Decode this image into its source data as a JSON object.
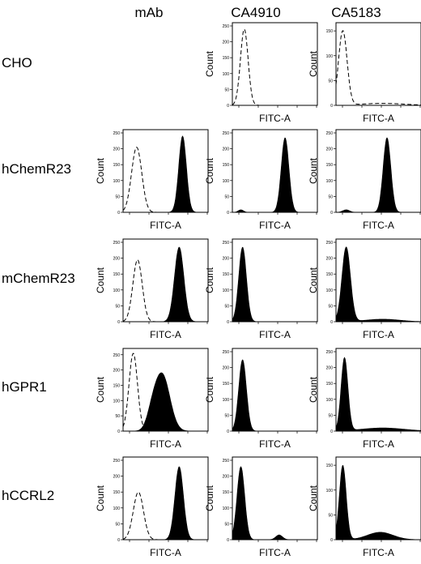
{
  "columns": [
    "mAb",
    "CA4910",
    "CA5183"
  ],
  "rows": [
    "CHO",
    "hChemR23",
    "mChemR23",
    "hGPR1",
    "hCCRL2"
  ],
  "axis": {
    "xlabel": "FITC-A",
    "ylabel": "Count"
  },
  "panels": [
    {
      "id": "CHO-CA4910",
      "row": 0,
      "col": 1,
      "ylim": [
        0,
        250
      ],
      "yticks": [
        "0",
        "50",
        "100",
        "150",
        "200",
        "250"
      ],
      "series": [
        {
          "style": "dashed",
          "peaks": [
            {
              "center": 0.14,
              "width": 0.045,
              "height": 240
            }
          ]
        }
      ]
    },
    {
      "id": "CHO-CA5183",
      "row": 0,
      "col": 2,
      "ylim": [
        0,
        160
      ],
      "yticks": [
        "0",
        "50",
        "100",
        "150"
      ],
      "series": [
        {
          "style": "dashed",
          "peaks": [
            {
              "center": 0.08,
              "width": 0.05,
              "height": 150
            },
            {
              "center": 0.55,
              "width": 0.25,
              "height": 4
            }
          ]
        }
      ]
    },
    {
      "id": "hChemR23-mAb",
      "row": 1,
      "col": 0,
      "ylim": [
        0,
        250
      ],
      "yticks": [
        "0",
        "50",
        "100",
        "150",
        "200",
        "250"
      ],
      "series": [
        {
          "style": "dashed",
          "peaks": [
            {
              "center": 0.16,
              "width": 0.06,
              "height": 205
            }
          ]
        },
        {
          "style": "filled",
          "peaks": [
            {
              "center": 0.7,
              "width": 0.045,
              "height": 240
            }
          ]
        }
      ]
    },
    {
      "id": "hChemR23-CA4910",
      "row": 1,
      "col": 1,
      "ylim": [
        0,
        250
      ],
      "yticks": [
        "0",
        "50",
        "100",
        "150",
        "200",
        "250"
      ],
      "series": [
        {
          "style": "filled",
          "peaks": [
            {
              "center": 0.62,
              "width": 0.045,
              "height": 235
            },
            {
              "center": 0.1,
              "width": 0.03,
              "height": 8
            }
          ]
        }
      ]
    },
    {
      "id": "hChemR23-CA5183",
      "row": 1,
      "col": 2,
      "ylim": [
        0,
        250
      ],
      "yticks": [
        "0",
        "50",
        "100",
        "150",
        "200",
        "250"
      ],
      "series": [
        {
          "style": "filled",
          "peaks": [
            {
              "center": 0.6,
              "width": 0.045,
              "height": 235
            },
            {
              "center": 0.12,
              "width": 0.04,
              "height": 8
            }
          ]
        }
      ]
    },
    {
      "id": "mChemR23-mAb",
      "row": 2,
      "col": 0,
      "ylim": [
        0,
        250
      ],
      "yticks": [
        "0",
        "50",
        "100",
        "150",
        "200",
        "250"
      ],
      "series": [
        {
          "style": "dashed",
          "peaks": [
            {
              "center": 0.17,
              "width": 0.055,
              "height": 195
            }
          ]
        },
        {
          "style": "filled",
          "peaks": [
            {
              "center": 0.66,
              "width": 0.055,
              "height": 235
            }
          ]
        }
      ]
    },
    {
      "id": "mChemR23-CA4910",
      "row": 2,
      "col": 1,
      "ylim": [
        0,
        250
      ],
      "yticks": [
        "0",
        "50",
        "100",
        "150",
        "200",
        "250"
      ],
      "series": [
        {
          "style": "filled",
          "peaks": [
            {
              "center": 0.12,
              "width": 0.045,
              "height": 235
            }
          ]
        }
      ]
    },
    {
      "id": "mChemR23-CA5183",
      "row": 2,
      "col": 2,
      "ylim": [
        0,
        250
      ],
      "yticks": [
        "0",
        "50",
        "100",
        "150",
        "200",
        "250"
      ],
      "series": [
        {
          "style": "filled",
          "peaks": [
            {
              "center": 0.12,
              "width": 0.05,
              "height": 235
            },
            {
              "center": 0.55,
              "width": 0.2,
              "height": 8
            }
          ]
        }
      ]
    },
    {
      "id": "hGPR1-mAb",
      "row": 3,
      "col": 0,
      "ylim": [
        0,
        260
      ],
      "yticks": [
        "0",
        "50",
        "100",
        "150",
        "200",
        "250"
      ],
      "series": [
        {
          "style": "dashed",
          "peaks": [
            {
              "center": 0.12,
              "width": 0.05,
              "height": 255
            }
          ]
        },
        {
          "style": "filled",
          "peaks": [
            {
              "center": 0.46,
              "width": 0.09,
              "height": 185
            },
            {
              "center": 0.34,
              "width": 0.06,
              "height": 40
            }
          ]
        }
      ]
    },
    {
      "id": "hGPR1-CA4910",
      "row": 3,
      "col": 1,
      "ylim": [
        0,
        250
      ],
      "yticks": [
        "0",
        "50",
        "100",
        "150",
        "200",
        "250"
      ],
      "series": [
        {
          "style": "filled",
          "peaks": [
            {
              "center": 0.12,
              "width": 0.045,
              "height": 225
            }
          ]
        }
      ]
    },
    {
      "id": "hGPR1-CA5183",
      "row": 3,
      "col": 2,
      "ylim": [
        0,
        250
      ],
      "yticks": [
        "0",
        "50",
        "100",
        "150",
        "200",
        "250"
      ],
      "series": [
        {
          "style": "filled",
          "peaks": [
            {
              "center": 0.1,
              "width": 0.04,
              "height": 230
            },
            {
              "center": 0.55,
              "width": 0.25,
              "height": 10
            }
          ]
        }
      ]
    },
    {
      "id": "hCCRL2-mAb",
      "row": 4,
      "col": 0,
      "ylim": [
        0,
        250
      ],
      "yticks": [
        "0",
        "50",
        "100",
        "150",
        "200",
        "250"
      ],
      "series": [
        {
          "style": "dashed",
          "peaks": [
            {
              "center": 0.18,
              "width": 0.06,
              "height": 150
            }
          ]
        },
        {
          "style": "filled",
          "peaks": [
            {
              "center": 0.66,
              "width": 0.05,
              "height": 230
            }
          ]
        }
      ]
    },
    {
      "id": "hCCRL2-CA4910",
      "row": 4,
      "col": 1,
      "ylim": [
        0,
        250
      ],
      "yticks": [
        "0",
        "50",
        "100",
        "150",
        "200",
        "250"
      ],
      "series": [
        {
          "style": "filled",
          "peaks": [
            {
              "center": 0.1,
              "width": 0.045,
              "height": 230
            },
            {
              "center": 0.55,
              "width": 0.04,
              "height": 15
            }
          ]
        }
      ]
    },
    {
      "id": "hCCRL2-CA5183",
      "row": 4,
      "col": 2,
      "ylim": [
        0,
        160
      ],
      "yticks": [
        "0",
        "50",
        "100",
        "150"
      ],
      "series": [
        {
          "style": "filled",
          "peaks": [
            {
              "center": 0.08,
              "width": 0.04,
              "height": 150
            },
            {
              "center": 0.52,
              "width": 0.15,
              "height": 15
            }
          ]
        }
      ]
    }
  ]
}
